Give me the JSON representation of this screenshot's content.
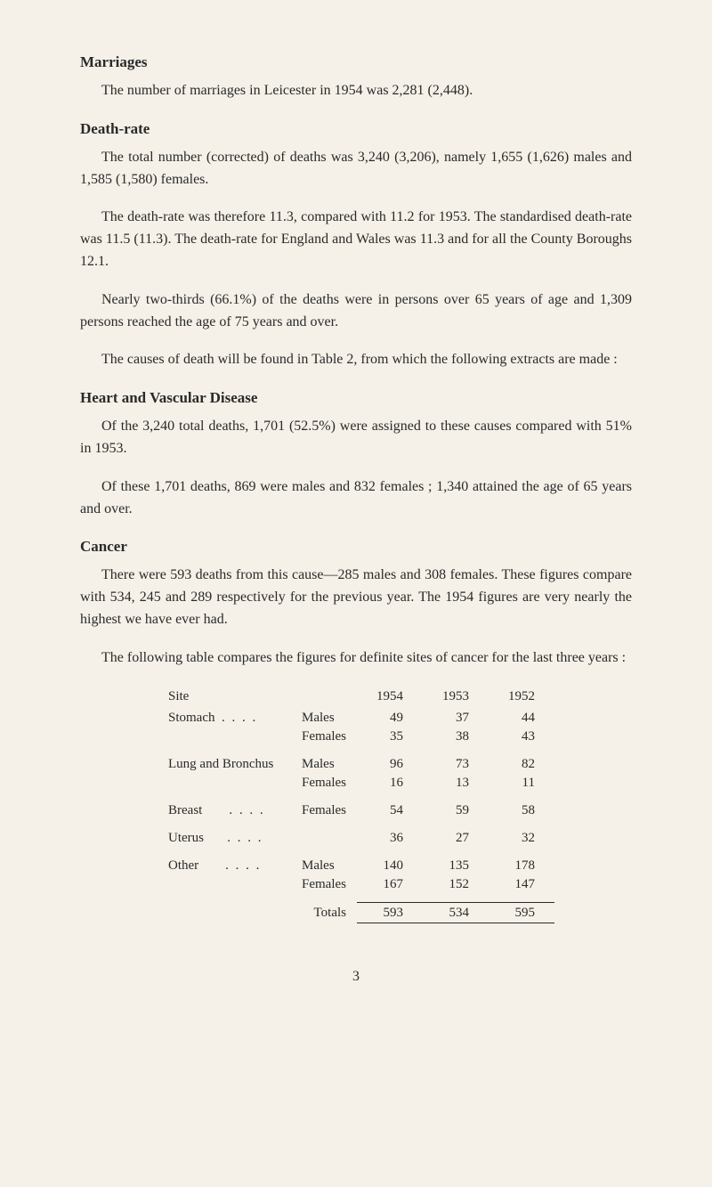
{
  "sections": {
    "marriages": {
      "heading": "Marriages",
      "p1": "The number of marriages in Leicester in 1954 was 2,281 (2,448)."
    },
    "deathRate": {
      "heading": "Death-rate",
      "p1": "The total number (corrected) of deaths was 3,240 (3,206), namely 1,655 (1,626) males and 1,585 (1,580) females.",
      "p2": "The death-rate was therefore 11.3, compared with 11.2 for 1953. The standardised death-rate was 11.5 (11.3). The death-rate for England and Wales was 11.3 and for all the County Boroughs 12.1.",
      "p3": "Nearly two-thirds (66.1%) of the deaths were in persons over 65 years of age and 1,309 persons reached the age of 75 years and over.",
      "p4": "The causes of death will be found in Table 2, from which the follow­ing extracts are made :"
    },
    "heartVascular": {
      "heading": "Heart and Vascular Disease",
      "p1": "Of the 3,240 total deaths, 1,701 (52.5%) were assigned to these causes compared with 51% in 1953.",
      "p2": "Of these 1,701 deaths, 869 were males and 832 females ; 1,340 attained the age of 65 years and over."
    },
    "cancer": {
      "heading": "Cancer",
      "p1": "There were 593 deaths from this cause—285 males and 308 females. These figures compare with 534, 245 and 289 respectively for the previous year. The 1954 figures are very nearly the highest we have ever had.",
      "p2": "The following table compares the figures for definite sites of cancer for the last three years :"
    }
  },
  "table": {
    "headers": {
      "site": "Site",
      "y1954": "1954",
      "y1953": "1953",
      "y1952": "1952"
    },
    "rows": {
      "stomach": {
        "label": "Stomach",
        "dots": ". .      . .",
        "males": {
          "label": "Males",
          "y1954": "49",
          "y1953": "37",
          "y1952": "44"
        },
        "females": {
          "label": "Females",
          "y1954": "35",
          "y1953": "38",
          "y1952": "43"
        }
      },
      "lungBronchus": {
        "label": "Lung and Bronchus",
        "males": {
          "label": "Males",
          "y1954": "96",
          "y1953": "73",
          "y1952": "82"
        },
        "females": {
          "label": "Females",
          "y1954": "16",
          "y1953": "13",
          "y1952": "11"
        }
      },
      "breast": {
        "label": "Breast",
        "dots": ". .      . .",
        "females": {
          "label": "Females",
          "y1954": "54",
          "y1953": "59",
          "y1952": "58"
        }
      },
      "uterus": {
        "label": "Uterus",
        "dots": ". .      . .",
        "y1954": "36",
        "y1953": "27",
        "y1952": "32"
      },
      "other": {
        "label": "Other",
        "dots": ". .      . .",
        "males": {
          "label": "Males",
          "y1954": "140",
          "y1953": "135",
          "y1952": "178"
        },
        "females": {
          "label": "Females",
          "y1954": "167",
          "y1953": "152",
          "y1952": "147"
        }
      },
      "totals": {
        "label": "Totals",
        "y1954": "593",
        "y1953": "534",
        "y1952": "595"
      }
    }
  },
  "pageNumber": "3"
}
